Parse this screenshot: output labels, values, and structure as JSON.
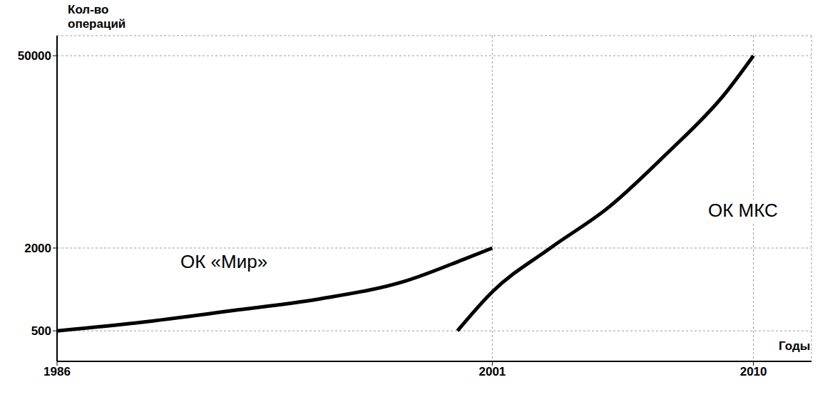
{
  "chart_data": {
    "type": "line",
    "x_label": "Годы",
    "y_label": "Кол-во операций",
    "xlim": [
      1986,
      2012
    ],
    "xticks": [
      1986,
      2001,
      2010
    ],
    "ylim": [
      300,
      70000
    ],
    "yticks": [
      500,
      2000,
      50000
    ],
    "log": "y",
    "grid": true,
    "series": [
      {
        "name": "ОК «Мир»",
        "color": "#000000",
        "marker": "none",
        "line_style": "solid",
        "x": [
          1986,
          1989,
          1992,
          1995,
          1998,
          2000,
          2001
        ],
        "values": [
          500,
          580,
          700,
          850,
          1150,
          1650,
          2000
        ]
      },
      {
        "name": "ОК МКС",
        "color": "#000000",
        "marker": "none",
        "line_style": "solid",
        "x": [
          1999.8,
          2001,
          2003,
          2005,
          2007,
          2009,
          2010
        ],
        "values": [
          500,
          960,
          2000,
          3940,
          9660,
          26200,
          50000
        ]
      }
    ]
  }
}
